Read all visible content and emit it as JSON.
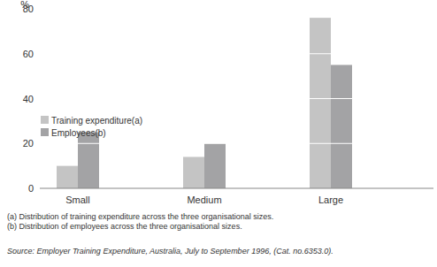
{
  "chart_data": {
    "type": "bar",
    "y_label": "%",
    "categories": [
      "Small",
      "Medium",
      "Large"
    ],
    "series": [
      {
        "name": "Training expenditure(a)",
        "color": "#c4c4c4",
        "values": [
          10,
          14,
          76
        ]
      },
      {
        "name": "Employees(b)",
        "color": "#a3a3a5",
        "values": [
          25,
          20,
          55
        ]
      }
    ],
    "ylim": [
      0,
      80
    ],
    "yticks": [
      0,
      20,
      40,
      60,
      80
    ],
    "grid": true,
    "legend": "left",
    "notes": [
      "(a) Distribution of training expenditure across the three organisational sizes.",
      "(b) Distribution of employees across the three organisational sizes."
    ],
    "source": "Source: Employer Training Expenditure, Australia, July to September 1996, (Cat. no.6353.0)."
  }
}
